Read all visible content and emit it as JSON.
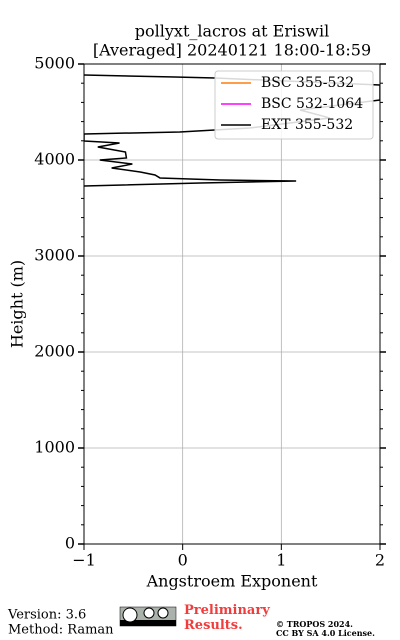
{
  "chart_data": {
    "type": "line",
    "title": "pollyxt_lacros at Eriswil",
    "subtitle": "[Averaged] 20240121 18:00-18:59",
    "x_label": "Angstroem Exponent",
    "y_label": "Height (m)",
    "xlim": [
      -1,
      2
    ],
    "xticks": [
      {
        "value": -1,
        "label": "−1"
      },
      0,
      1,
      2
    ],
    "ylim": [
      0,
      5000
    ],
    "yticks": [
      0,
      1000,
      2000,
      3000,
      4000,
      5000
    ],
    "grid": true,
    "legend": "upper right",
    "y": [
      4885,
      4865,
      4854,
      4781,
      4625,
      4521,
      4438,
      4333,
      4292,
      4271,
      4198,
      4177,
      4135,
      4083,
      4021,
      4000,
      3958,
      3917,
      3875,
      3844,
      3813,
      3792,
      3781,
      3760,
      3729
    ],
    "series": [
      {
        "name": "BSC 355-532",
        "color": "#ff7f0e",
        "values": [
          null,
          null,
          null,
          null,
          null,
          null,
          null,
          null,
          null,
          null,
          null,
          null,
          null,
          null,
          null,
          null,
          null,
          null,
          null,
          null,
          null,
          null,
          null,
          null,
          null
        ]
      },
      {
        "name": "BSC 532-1064",
        "color": "#ff00ff",
        "values": [
          null,
          null,
          null,
          null,
          null,
          null,
          null,
          null,
          null,
          null,
          null,
          null,
          null,
          null,
          null,
          null,
          null,
          null,
          null,
          null,
          null,
          null,
          null,
          null,
          null
        ]
      },
      {
        "name": "EXT 355-532",
        "color": "#000000",
        "values": [
          -1.0,
          -0.08,
          0.33,
          2.0,
          2.0,
          1.19,
          1.49,
          0.68,
          -0.03,
          -1.0,
          -1.0,
          -0.64,
          -0.86,
          -0.58,
          -0.57,
          -0.84,
          -0.51,
          -0.72,
          -0.43,
          -0.28,
          -0.23,
          0.38,
          1.15,
          0.18,
          -1.0
        ]
      }
    ]
  },
  "footer": {
    "version": "Version: 3.6",
    "method": "Method: Raman",
    "notice": "Preliminary Results.",
    "copyright": "© TROPOS 2024.",
    "license": "CC BY SA 4.0 License."
  }
}
